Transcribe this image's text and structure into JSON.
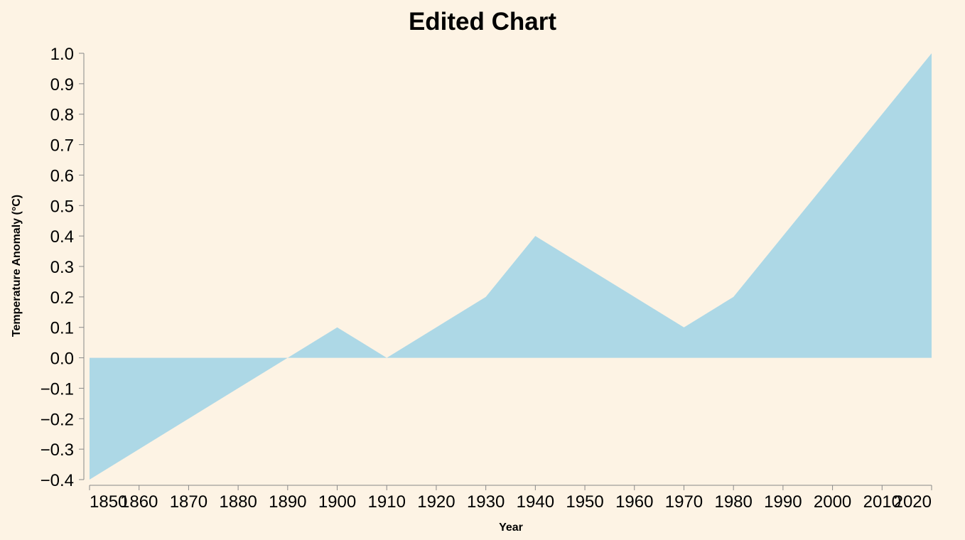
{
  "chart_data": {
    "type": "area",
    "title": "Edited Chart",
    "xlabel": "Year",
    "ylabel": "Temperature Anomaly (°C)",
    "x": [
      1850,
      1860,
      1870,
      1880,
      1890,
      1900,
      1910,
      1920,
      1930,
      1940,
      1950,
      1960,
      1970,
      1980,
      1990,
      2000,
      2010,
      2020
    ],
    "series": [
      {
        "values": [
          -0.4,
          -0.3,
          -0.2,
          -0.1,
          0.0,
          0.1,
          0.0,
          0.1,
          0.2,
          0.4,
          0.3,
          0.2,
          0.1,
          0.2,
          0.4,
          0.6,
          0.8,
          1.0
        ]
      }
    ],
    "x_ticks": [
      "1850",
      "1860",
      "1870",
      "1880",
      "1890",
      "1900",
      "1910",
      "1920",
      "1930",
      "1940",
      "1950",
      "1960",
      "1970",
      "1980",
      "1990",
      "2000",
      "2010",
      "2020"
    ],
    "y_ticks": [
      "1.0",
      "0.9",
      "0.8",
      "0.7",
      "0.6",
      "0.5",
      "0.4",
      "0.3",
      "0.2",
      "0.1",
      "0.0",
      "−0.1",
      "−0.2",
      "−0.3",
      "−0.4"
    ],
    "xlim": [
      1850,
      2020
    ],
    "ylim": [
      -0.4,
      1.0
    ],
    "grid": false,
    "legend": "none",
    "colors": {
      "background": "#fdf3e4",
      "area": "#add8e6",
      "axis": "#888888"
    }
  }
}
